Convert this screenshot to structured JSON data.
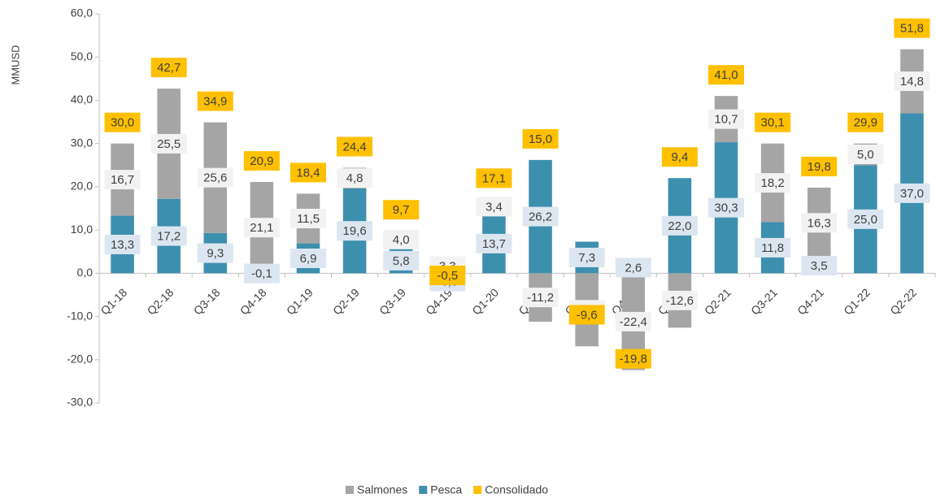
{
  "chart_data": {
    "type": "bar",
    "y_label": "MMUSD",
    "categories": [
      "Q1-18",
      "Q2-18",
      "Q3-18",
      "Q4-18",
      "Q1-19",
      "Q2-19",
      "Q3-19",
      "Q4-19",
      "Q1-20",
      "Q2-20",
      "Q3-20",
      "Q4-20",
      "Q1-21",
      "Q2-21",
      "Q3-21",
      "Q4-21",
      "Q1-22",
      "Q2-22"
    ],
    "series": [
      {
        "name": "Salmones",
        "type": "bar",
        "color": "#a5a5a5",
        "label_color": "#f2f2f2",
        "values": [
          16.7,
          25.5,
          25.6,
          21.1,
          11.5,
          4.8,
          4.0,
          3.3,
          3.4,
          -11.2,
          -16.9,
          -22.4,
          -12.6,
          10.7,
          18.2,
          16.3,
          5.0,
          14.8
        ],
        "value_labels": [
          "16,7",
          "25,5",
          "25,6",
          "21,1",
          "11,5",
          "4,8",
          "4,0",
          "3,3",
          "3,4",
          "-11,2",
          "-16,9",
          "-22,4",
          "-12,6",
          "10,7",
          "18,2",
          "16,3",
          "5,0",
          "14,8"
        ]
      },
      {
        "name": "Pesca",
        "type": "bar",
        "color": "#3d8fae",
        "label_color": "#dce6f1",
        "values": [
          13.3,
          17.2,
          9.3,
          -0.1,
          6.9,
          19.6,
          5.8,
          -3.8,
          13.7,
          26.2,
          7.3,
          2.6,
          22.0,
          30.3,
          11.8,
          3.5,
          25.0,
          37.0
        ],
        "value_labels": [
          "13,3",
          "17,2",
          "9,3",
          "-0,1",
          "6,9",
          "19,6",
          "5,8",
          "-3,8",
          "13,7",
          "26,2",
          "7,3",
          "2,6",
          "22,0",
          "30,3",
          "11,8",
          "3,5",
          "25,0",
          "37,0"
        ]
      },
      {
        "name": "Consolidado",
        "type": "total",
        "color": "#ffc000",
        "values": [
          30.0,
          42.7,
          34.9,
          20.9,
          18.4,
          24.4,
          9.7,
          -0.5,
          17.1,
          15.0,
          -9.6,
          -19.8,
          9.4,
          41.0,
          30.1,
          19.8,
          29.9,
          51.8
        ],
        "value_labels": [
          "30,0",
          "42,7",
          "34,9",
          "20,9",
          "18,4",
          "24,4",
          "9,7",
          "-0,5",
          "17,1",
          "15,0",
          "-9,6",
          "-19,8",
          "9,4",
          "41,0",
          "30,1",
          "19,8",
          "29,9",
          "51,8"
        ]
      }
    ],
    "ylim": [
      -30,
      60
    ],
    "yticks": [
      {
        "value": -30,
        "label": "-30,0"
      },
      {
        "value": -20,
        "label": "-20,0"
      },
      {
        "value": -10,
        "label": "-10,0"
      },
      {
        "value": 0,
        "label": "0,0"
      },
      {
        "value": 10,
        "label": "10,0"
      },
      {
        "value": 20,
        "label": "20,0"
      },
      {
        "value": 30,
        "label": "30,0"
      },
      {
        "value": 40,
        "label": "40,0"
      },
      {
        "value": 50,
        "label": "50,0"
      },
      {
        "value": 60,
        "label": "60,0"
      }
    ],
    "legend": "bottom"
  }
}
